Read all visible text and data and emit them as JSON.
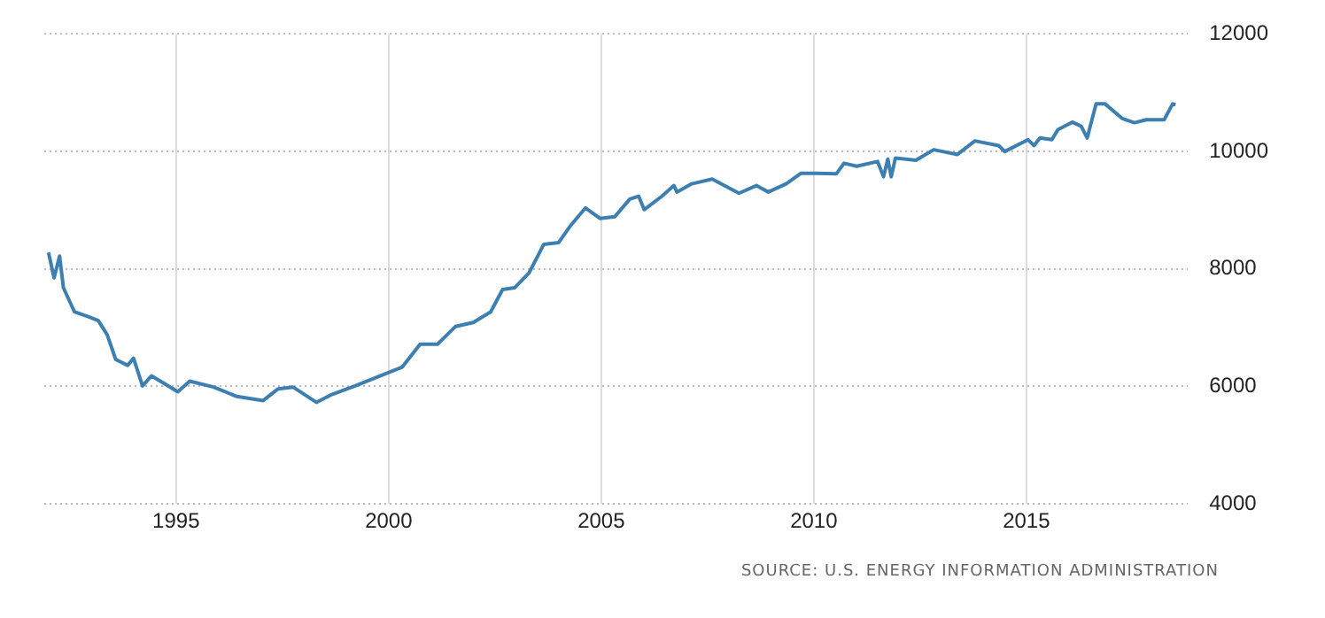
{
  "chart_data": {
    "type": "line",
    "x": [
      1992.0,
      1992.13,
      1992.26,
      1992.35,
      1992.61,
      1992.96,
      1993.17,
      1993.38,
      1993.58,
      1993.86,
      1994.0,
      1994.21,
      1994.42,
      1994.7,
      1995.04,
      1995.32,
      1995.88,
      1996.43,
      1997.05,
      1997.4,
      1997.75,
      1998.3,
      1998.65,
      1999.21,
      1999.9,
      2000.32,
      2000.74,
      2001.15,
      2001.57,
      2001.99,
      2002.4,
      2002.68,
      2002.96,
      2003.3,
      2003.65,
      2004.0,
      2004.28,
      2004.63,
      2004.97,
      2005.32,
      2005.67,
      2005.88,
      2006.01,
      2006.43,
      2006.71,
      2006.78,
      2007.13,
      2007.61,
      2008.24,
      2008.65,
      2008.93,
      2009.35,
      2009.7,
      2010.04,
      2010.53,
      2010.71,
      2011.01,
      2011.5,
      2011.64,
      2011.74,
      2011.82,
      2011.92,
      2012.4,
      2012.82,
      2013.38,
      2013.79,
      2014.35,
      2014.49,
      2015.04,
      2015.18,
      2015.32,
      2015.6,
      2015.74,
      2016.08,
      2016.29,
      2016.43,
      2016.64,
      2016.85,
      2017.26,
      2017.54,
      2017.82,
      2018.24,
      2018.44,
      2018.51
    ],
    "values": [
      8280,
      7850,
      8220,
      7680,
      7270,
      7180,
      7120,
      6880,
      6460,
      6360,
      6480,
      6010,
      6180,
      6060,
      5910,
      6090,
      5990,
      5830,
      5760,
      5960,
      5990,
      5730,
      5860,
      6010,
      6210,
      6330,
      6720,
      6720,
      7020,
      7090,
      7270,
      7650,
      7680,
      7930,
      8420,
      8450,
      8740,
      9040,
      8860,
      8890,
      9190,
      9240,
      9010,
      9240,
      9420,
      9310,
      9450,
      9530,
      9290,
      9420,
      9310,
      9450,
      9630,
      9630,
      9620,
      9800,
      9750,
      9830,
      9570,
      9870,
      9570,
      9890,
      9850,
      10030,
      9950,
      10180,
      10100,
      10000,
      10200,
      10100,
      10230,
      10200,
      10370,
      10500,
      10430,
      10230,
      10810,
      10810,
      10560,
      10490,
      10540,
      10540,
      10810,
      10800
    ],
    "color": "#3d7fb0",
    "marker": "none",
    "xlim": [
      1991.9,
      2018.8
    ],
    "xticks": [
      1995,
      2000,
      2005,
      2010,
      2015
    ],
    "ylim": [
      4000,
      12000
    ],
    "yticks": [
      4000,
      6000,
      8000,
      10000,
      12000
    ],
    "grid": true,
    "annotations": [
      "SOURCE: U.S. ENERGY INFORMATION ADMINISTRATION"
    ]
  }
}
